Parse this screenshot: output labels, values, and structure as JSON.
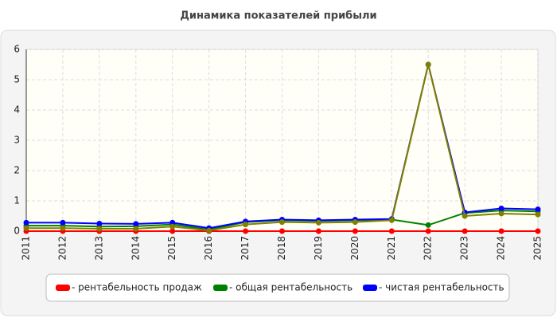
{
  "chart_data": {
    "type": "line",
    "title": "Динамика показателей прибыли",
    "categories": [
      "2011",
      "2012",
      "2013",
      "2014",
      "2015",
      "2016",
      "2017",
      "2018",
      "2019",
      "2020",
      "2021",
      "2022",
      "2023",
      "2024",
      "2025"
    ],
    "series": [
      {
        "name": "- рентабельность продаж",
        "color": "#ff0000",
        "values": [
          0,
          0,
          0,
          0,
          0,
          0,
          0,
          0,
          0,
          0,
          0,
          0,
          0,
          0,
          0
        ]
      },
      {
        "name": "- общая рентабельность",
        "color": "#008000",
        "values": [
          0.18,
          0.18,
          0.15,
          0.16,
          0.22,
          0.05,
          0.3,
          0.36,
          0.34,
          0.36,
          0.38,
          0.2,
          0.6,
          0.68,
          0.65
        ]
      },
      {
        "name": "- чистая рентабельность",
        "color": "#0000ff",
        "values": [
          0.28,
          0.28,
          0.25,
          0.24,
          0.28,
          0.1,
          0.32,
          0.38,
          0.36,
          0.38,
          0.4,
          5.5,
          0.62,
          0.75,
          0.72
        ]
      },
      {
        "color": "#808000",
        "values": [
          0.1,
          0.1,
          0.08,
          0.08,
          0.15,
          0.02,
          0.22,
          0.3,
          0.28,
          0.3,
          0.36,
          5.5,
          0.5,
          0.58,
          0.55
        ]
      }
    ],
    "ylim": [
      0,
      6
    ],
    "yticks": [
      0,
      1,
      2,
      3,
      4,
      5,
      6
    ],
    "grid": true
  }
}
